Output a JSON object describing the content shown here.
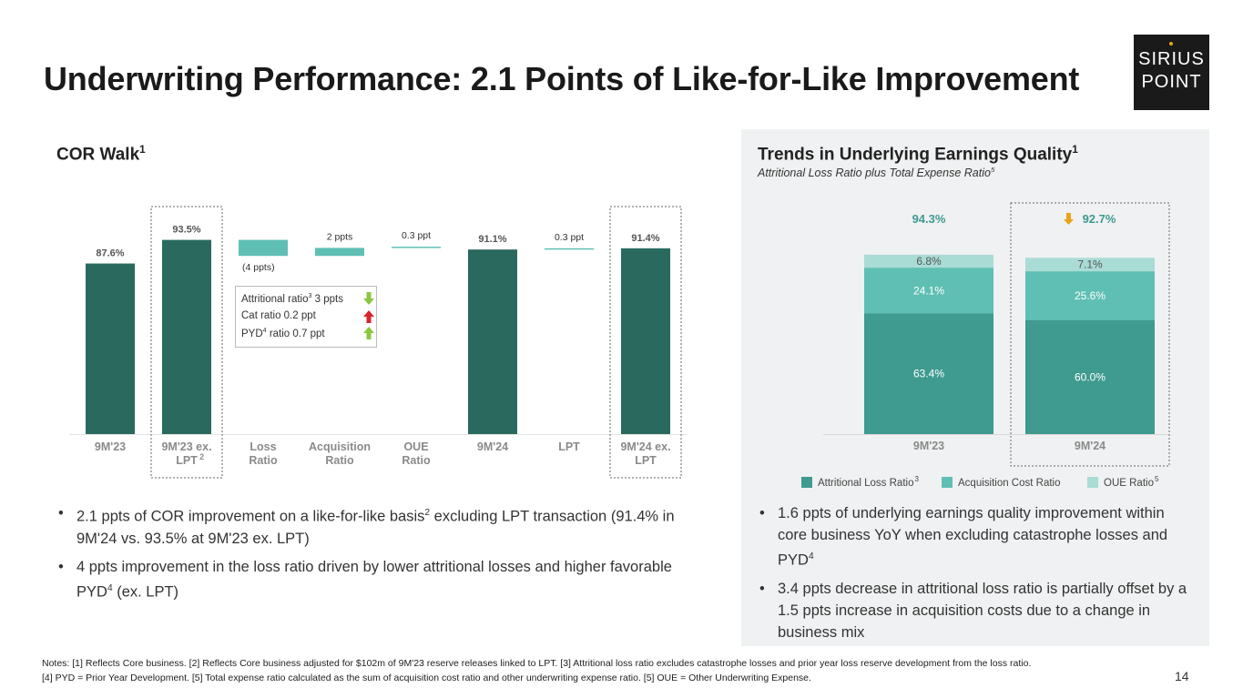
{
  "header": {
    "title": "Underwriting Performance: 2.1 Points of Like-for-Like Improvement",
    "logo_top": "SIRIUS",
    "logo_bottom": "POINT"
  },
  "left": {
    "title": "COR Walk",
    "title_sup": "1",
    "composition": {
      "row1_pre": "Attritional ratio",
      "row1_sup": "3",
      "row1_post": " 3 ppts",
      "row2": "Cat ratio 0.2 ppt",
      "row3_pre": "PYD",
      "row3_sup": "4",
      "row3_post": " ratio 0.7 ppt"
    },
    "bullets": [
      {
        "pre": "2.1 ppts of COR improvement on a like-for-like basis",
        "sup": "2",
        "post": " excluding LPT transaction (91.4% in 9M'24 vs. 93.5% at 9M'23 ex. LPT)"
      },
      {
        "pre": "4 ppts improvement in the loss ratio driven by lower attritional losses and higher favorable PYD",
        "sup": "4",
        "post": " (ex. LPT)"
      }
    ]
  },
  "right": {
    "title": "Trends in Underlying Earnings Quality",
    "title_sup": "1",
    "subtitle": "Attritional Loss Ratio plus Total Expense Ratio",
    "subtitle_sup": "5",
    "bullets": [
      {
        "pre": "1.6 ppts of underlying earnings quality improvement within core business YoY when excluding catastrophe losses and PYD",
        "sup": "4",
        "post": ""
      },
      {
        "pre": "3.4 ppts decrease in attritional loss ratio is partially offset by a 1.5 ppts increase in acquisition costs due to a change in business mix",
        "sup": "",
        "post": ""
      }
    ]
  },
  "chart_data": [
    {
      "type": "bar",
      "subtype": "waterfall",
      "title": "COR Walk",
      "ylim": [
        0,
        100
      ],
      "categories": [
        "9M'23",
        "9M'23 ex. LPT",
        "Loss Ratio",
        "Acquisition Ratio",
        "OUE Ratio",
        "9M'24",
        "LPT",
        "9M'24 ex. LPT"
      ],
      "category_sups": [
        "",
        "2",
        "",
        "",
        "",
        "",
        "",
        ""
      ],
      "bars": [
        {
          "kind": "total",
          "value": 87.6,
          "label": "87.6%"
        },
        {
          "kind": "total",
          "value": 93.5,
          "label": "93.5%"
        },
        {
          "kind": "delta",
          "value": -4,
          "label": "(4 ppts)"
        },
        {
          "kind": "delta",
          "value": 2,
          "label": "2 ppts"
        },
        {
          "kind": "delta",
          "value": 0.3,
          "label": "0.3 ppt"
        },
        {
          "kind": "total",
          "value": 91.1,
          "label": "91.1%"
        },
        {
          "kind": "delta",
          "value": 0.3,
          "label": "0.3 ppt"
        },
        {
          "kind": "total",
          "value": 91.4,
          "label": "91.4%"
        }
      ],
      "colors": {
        "total": "#2a6a5e",
        "delta": "#5fbfb4"
      }
    },
    {
      "type": "bar",
      "subtype": "stacked",
      "title": "Trends in Underlying Earnings Quality",
      "ylim": [
        0,
        100
      ],
      "categories": [
        "9M'23",
        "9M'24"
      ],
      "totals": [
        "94.3%",
        "92.7%"
      ],
      "series": [
        {
          "name": "Attritional Loss Ratio",
          "sup": "3",
          "values": [
            63.4,
            60.0
          ],
          "labels": [
            "63.4%",
            "60.0%"
          ],
          "color": "#3f9a90"
        },
        {
          "name": "Acquisition Cost Ratio",
          "sup": "",
          "values": [
            24.1,
            25.6
          ],
          "labels": [
            "24.1%",
            "25.6%"
          ],
          "color": "#5fbfb4"
        },
        {
          "name": "OUE Ratio",
          "sup": "5",
          "values": [
            6.8,
            7.1
          ],
          "labels": [
            "6.8%",
            "7.1%"
          ],
          "color": "#a9dcd5"
        }
      ]
    }
  ],
  "colors": {
    "accent": "#2a6a5e",
    "arrow_down": "#8cc63f",
    "arrow_up_red": "#d9232d",
    "arrow_up_green": "#8cc63f",
    "gold": "#e8a317"
  },
  "notes": {
    "line1": "Notes:  [1] Reflects Core business. [2] Reflects Core business adjusted for $102m of 9M'23 reserve releases linked to LPT. [3] Attritional loss ratio excludes catastrophe losses and prior year loss reserve development from the loss ratio.",
    "line2": "[4] PYD = Prior Year Development. [5] Total expense ratio calculated as the sum of acquisition cost ratio and other underwriting expense ratio. [5] OUE = Other Underwriting Expense."
  },
  "page_number": "14"
}
